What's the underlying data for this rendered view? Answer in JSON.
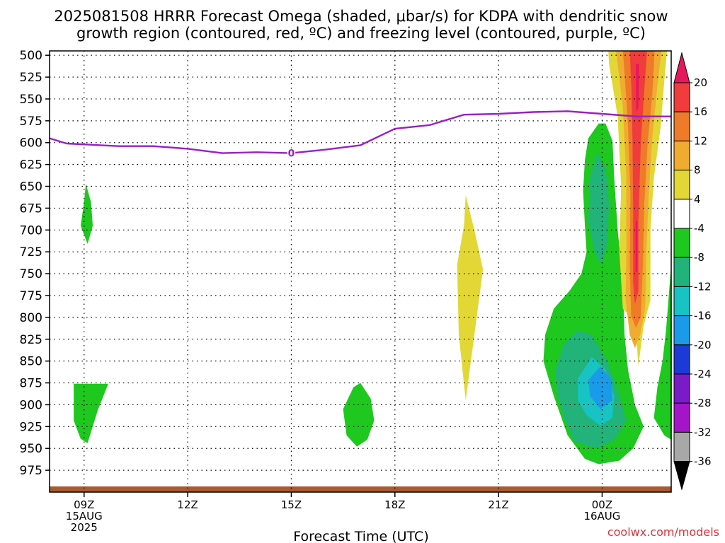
{
  "chart_data": {
    "type": "heatmap",
    "title_line1": "2025081508 HRRR Forecast Omega (shaded, μbar/s) for KDPA with dendritic snow",
    "title_line2": "growth region (contoured, red, ºC) and freezing level (contoured, purple, ºC)",
    "xlabel": "Forecast Time (UTC)",
    "credit": "coolwx.com/models",
    "x_unit": "forecast hour from 2025-08-15 08Z",
    "xlim": [
      0,
      18
    ],
    "x_ticks": [
      {
        "x": 1,
        "lines": [
          "09Z",
          "15AUG",
          "2025"
        ]
      },
      {
        "x": 4,
        "lines": [
          "12Z"
        ]
      },
      {
        "x": 7,
        "lines": [
          "15Z"
        ]
      },
      {
        "x": 10,
        "lines": [
          "18Z"
        ]
      },
      {
        "x": 13,
        "lines": [
          "21Z"
        ]
      },
      {
        "x": 16,
        "lines": [
          "00Z",
          "16AUG"
        ]
      }
    ],
    "y_label_unit": "hPa",
    "ylim": [
      1000,
      495
    ],
    "y_ticks": [
      500,
      525,
      550,
      575,
      600,
      625,
      650,
      675,
      700,
      725,
      750,
      775,
      800,
      825,
      850,
      875,
      900,
      925,
      950,
      975
    ],
    "grid": "dotted",
    "freezing_level": {
      "label": "0",
      "color": "#9b1fc4",
      "points": [
        [
          0,
          595
        ],
        [
          0.5,
          601
        ],
        [
          2,
          604
        ],
        [
          3,
          604
        ],
        [
          4,
          607
        ],
        [
          5,
          612
        ],
        [
          6,
          611
        ],
        [
          7,
          612
        ],
        [
          8,
          608
        ],
        [
          9,
          603
        ],
        [
          10,
          584
        ],
        [
          11,
          580
        ],
        [
          12,
          568
        ],
        [
          13,
          567
        ],
        [
          14,
          565
        ],
        [
          15,
          564
        ],
        [
          16,
          567
        ],
        [
          17,
          570
        ],
        [
          18,
          570
        ]
      ]
    },
    "colorbar": {
      "levels": [
        20,
        16,
        12,
        8,
        4,
        -4,
        -8,
        -12,
        -16,
        -20,
        -24,
        -28,
        -32,
        -36
      ],
      "colors": [
        "#e8175d",
        "#f03c3c",
        "#ee7a2a",
        "#f0ac30",
        "#e3d736",
        "#ffffff",
        "#1ec81e",
        "#22b37a",
        "#17c3c3",
        "#1a9ae8",
        "#1b3ad8",
        "#7a1bc8",
        "#a415c8",
        "#a8a8a8",
        "#000000"
      ]
    },
    "omega_regions": [
      {
        "value": -6,
        "color": "#1ec81e",
        "points": [
          [
            0.9,
            695
          ],
          [
            1.0,
            668
          ],
          [
            1.05,
            647
          ],
          [
            1.2,
            668
          ],
          [
            1.25,
            695
          ],
          [
            1.1,
            716
          ]
        ]
      },
      {
        "value": -6,
        "color": "#1ec81e",
        "points": [
          [
            0.7,
            876
          ],
          [
            1.7,
            876
          ],
          [
            1.4,
            906
          ],
          [
            1.1,
            944
          ],
          [
            0.9,
            939
          ],
          [
            0.7,
            918
          ]
        ]
      },
      {
        "value": -6,
        "color": "#1ec81e",
        "points": [
          [
            8.5,
            905
          ],
          [
            8.8,
            880
          ],
          [
            9.0,
            875
          ],
          [
            9.3,
            893
          ],
          [
            9.4,
            918
          ],
          [
            9.2,
            940
          ],
          [
            8.9,
            948
          ],
          [
            8.6,
            935
          ]
        ]
      },
      {
        "value": 6,
        "color": "#e3d736",
        "points": [
          [
            11.8,
            740
          ],
          [
            12.0,
            695
          ],
          [
            12.05,
            660
          ],
          [
            12.3,
            700
          ],
          [
            12.55,
            745
          ],
          [
            12.3,
            820
          ],
          [
            12.05,
            895
          ],
          [
            11.85,
            820
          ]
        ]
      },
      {
        "value": -6,
        "color": "#1ec81e",
        "points": [
          [
            15.9,
            578
          ],
          [
            16.1,
            578
          ],
          [
            16.3,
            598
          ],
          [
            16.35,
            640
          ],
          [
            16.45,
            700
          ],
          [
            16.6,
            760
          ],
          [
            16.65,
            820
          ],
          [
            16.75,
            860
          ],
          [
            16.95,
            900
          ],
          [
            17.2,
            925
          ],
          [
            16.9,
            950
          ],
          [
            16.5,
            964
          ],
          [
            15.9,
            968
          ],
          [
            15.5,
            962
          ],
          [
            15.0,
            935
          ],
          [
            14.6,
            890
          ],
          [
            14.3,
            850
          ],
          [
            14.35,
            820
          ],
          [
            14.6,
            790
          ],
          [
            15.05,
            770
          ],
          [
            15.4,
            750
          ],
          [
            15.55,
            725
          ],
          [
            15.5,
            695
          ],
          [
            15.45,
            655
          ],
          [
            15.5,
            620
          ],
          [
            15.6,
            595
          ]
        ]
      },
      {
        "value": -10,
        "color": "#22b37a",
        "points": [
          [
            15.85,
            612
          ],
          [
            16.1,
            628
          ],
          [
            16.2,
            670
          ],
          [
            16.15,
            715
          ],
          [
            16.0,
            740
          ],
          [
            15.8,
            728
          ],
          [
            15.6,
            690
          ],
          [
            15.65,
            640
          ]
        ]
      },
      {
        "value": -10,
        "color": "#22b37a",
        "points": [
          [
            14.65,
            860
          ],
          [
            14.9,
            830
          ],
          [
            15.3,
            815
          ],
          [
            15.7,
            820
          ],
          [
            16.15,
            850
          ],
          [
            16.5,
            890
          ],
          [
            16.7,
            918
          ],
          [
            16.35,
            940
          ],
          [
            15.85,
            950
          ],
          [
            15.2,
            942
          ],
          [
            14.9,
            915
          ],
          [
            14.7,
            888
          ]
        ]
      },
      {
        "value": -14,
        "color": "#17c3c3",
        "points": [
          [
            15.3,
            870
          ],
          [
            15.7,
            845
          ],
          [
            16.1,
            860
          ],
          [
            16.35,
            890
          ],
          [
            16.3,
            915
          ],
          [
            15.95,
            924
          ],
          [
            15.55,
            912
          ],
          [
            15.3,
            895
          ]
        ]
      },
      {
        "value": -18,
        "color": "#1a9ae8",
        "points": [
          [
            15.6,
            872
          ],
          [
            15.95,
            856
          ],
          [
            16.25,
            870
          ],
          [
            16.3,
            895
          ],
          [
            15.95,
            905
          ],
          [
            15.65,
            890
          ]
        ]
      },
      {
        "value": -6,
        "color": "#1ec81e",
        "points": [
          [
            17.85,
            815
          ],
          [
            18.0,
            740
          ],
          [
            18.0,
            940
          ],
          [
            17.8,
            935
          ],
          [
            17.5,
            915
          ],
          [
            17.6,
            880
          ],
          [
            17.75,
            850
          ]
        ]
      },
      {
        "value": 6,
        "color": "#e3d736",
        "points": [
          [
            16.18,
            495
          ],
          [
            17.88,
            495
          ],
          [
            17.8,
            530
          ],
          [
            17.7,
            580
          ],
          [
            17.5,
            640
          ],
          [
            17.4,
            700
          ],
          [
            17.4,
            780
          ],
          [
            17.2,
            810
          ],
          [
            17.05,
            855
          ],
          [
            16.95,
            805
          ],
          [
            16.6,
            790
          ],
          [
            16.5,
            725
          ],
          [
            16.55,
            650
          ],
          [
            16.45,
            570
          ],
          [
            16.2,
            510
          ]
        ]
      },
      {
        "value": 10,
        "color": "#f0ac30",
        "points": [
          [
            16.4,
            495
          ],
          [
            17.72,
            495
          ],
          [
            17.6,
            535
          ],
          [
            17.45,
            595
          ],
          [
            17.35,
            660
          ],
          [
            17.28,
            725
          ],
          [
            17.25,
            790
          ],
          [
            17.1,
            820
          ],
          [
            16.95,
            835
          ],
          [
            16.8,
            820
          ],
          [
            16.68,
            780
          ],
          [
            16.7,
            720
          ],
          [
            16.7,
            640
          ],
          [
            16.6,
            560
          ],
          [
            16.45,
            510
          ]
        ]
      },
      {
        "value": 14,
        "color": "#ee7a2a",
        "points": [
          [
            16.6,
            495
          ],
          [
            17.52,
            495
          ],
          [
            17.45,
            545
          ],
          [
            17.32,
            600
          ],
          [
            17.22,
            670
          ],
          [
            17.18,
            740
          ],
          [
            17.12,
            800
          ],
          [
            16.98,
            812
          ],
          [
            16.84,
            798
          ],
          [
            16.8,
            740
          ],
          [
            16.82,
            660
          ],
          [
            16.75,
            580
          ],
          [
            16.65,
            520
          ]
        ]
      },
      {
        "value": 18,
        "color": "#f03c3c",
        "points": [
          [
            16.8,
            495
          ],
          [
            17.3,
            495
          ],
          [
            17.22,
            540
          ],
          [
            17.12,
            600
          ],
          [
            17.05,
            690
          ],
          [
            17.05,
            770
          ],
          [
            16.95,
            785
          ],
          [
            16.9,
            760
          ],
          [
            16.9,
            680
          ],
          [
            16.88,
            600
          ],
          [
            16.85,
            540
          ]
        ]
      },
      {
        "value": 22,
        "color": "#e8175d",
        "points": [
          [
            16.97,
            510
          ],
          [
            17.07,
            510
          ],
          [
            17.05,
            560
          ],
          [
            16.99,
            565
          ]
        ]
      },
      {
        "value": 22,
        "color": "#e8175d",
        "points": [
          [
            16.97,
            690
          ],
          [
            17.02,
            690
          ],
          [
            17.02,
            748
          ],
          [
            16.97,
            748
          ]
        ]
      }
    ],
    "surface_terrain_color": "#a85a32"
  }
}
